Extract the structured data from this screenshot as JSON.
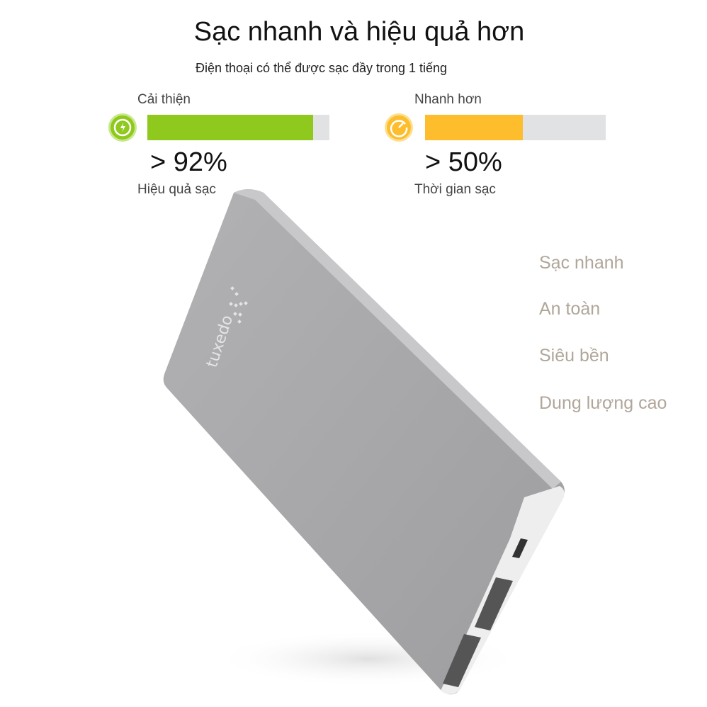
{
  "title": "Sạc nhanh và hiệu quả hơn",
  "subtitle": "Điện thoại có thể được sạc đầy trong 1 tiếng",
  "stats": [
    {
      "label": "Cải thiện",
      "value": "> 92%",
      "caption": "Hiệu quả sạc",
      "fill": 0.91,
      "color": "#8fc91d",
      "icon": "lightning-icon"
    },
    {
      "label": "Nhanh hơn",
      "value": "> 50%",
      "caption": "Thời gian sạc",
      "fill": 0.54,
      "color": "#fdbd2c",
      "icon": "speedometer-icon"
    }
  ],
  "features": [
    "Sạc nhanh",
    "An toàn",
    "Siêu bền",
    "Dung lượng cao"
  ],
  "product": {
    "brand": "tuxedo",
    "body_color": "#a9a9ab"
  }
}
